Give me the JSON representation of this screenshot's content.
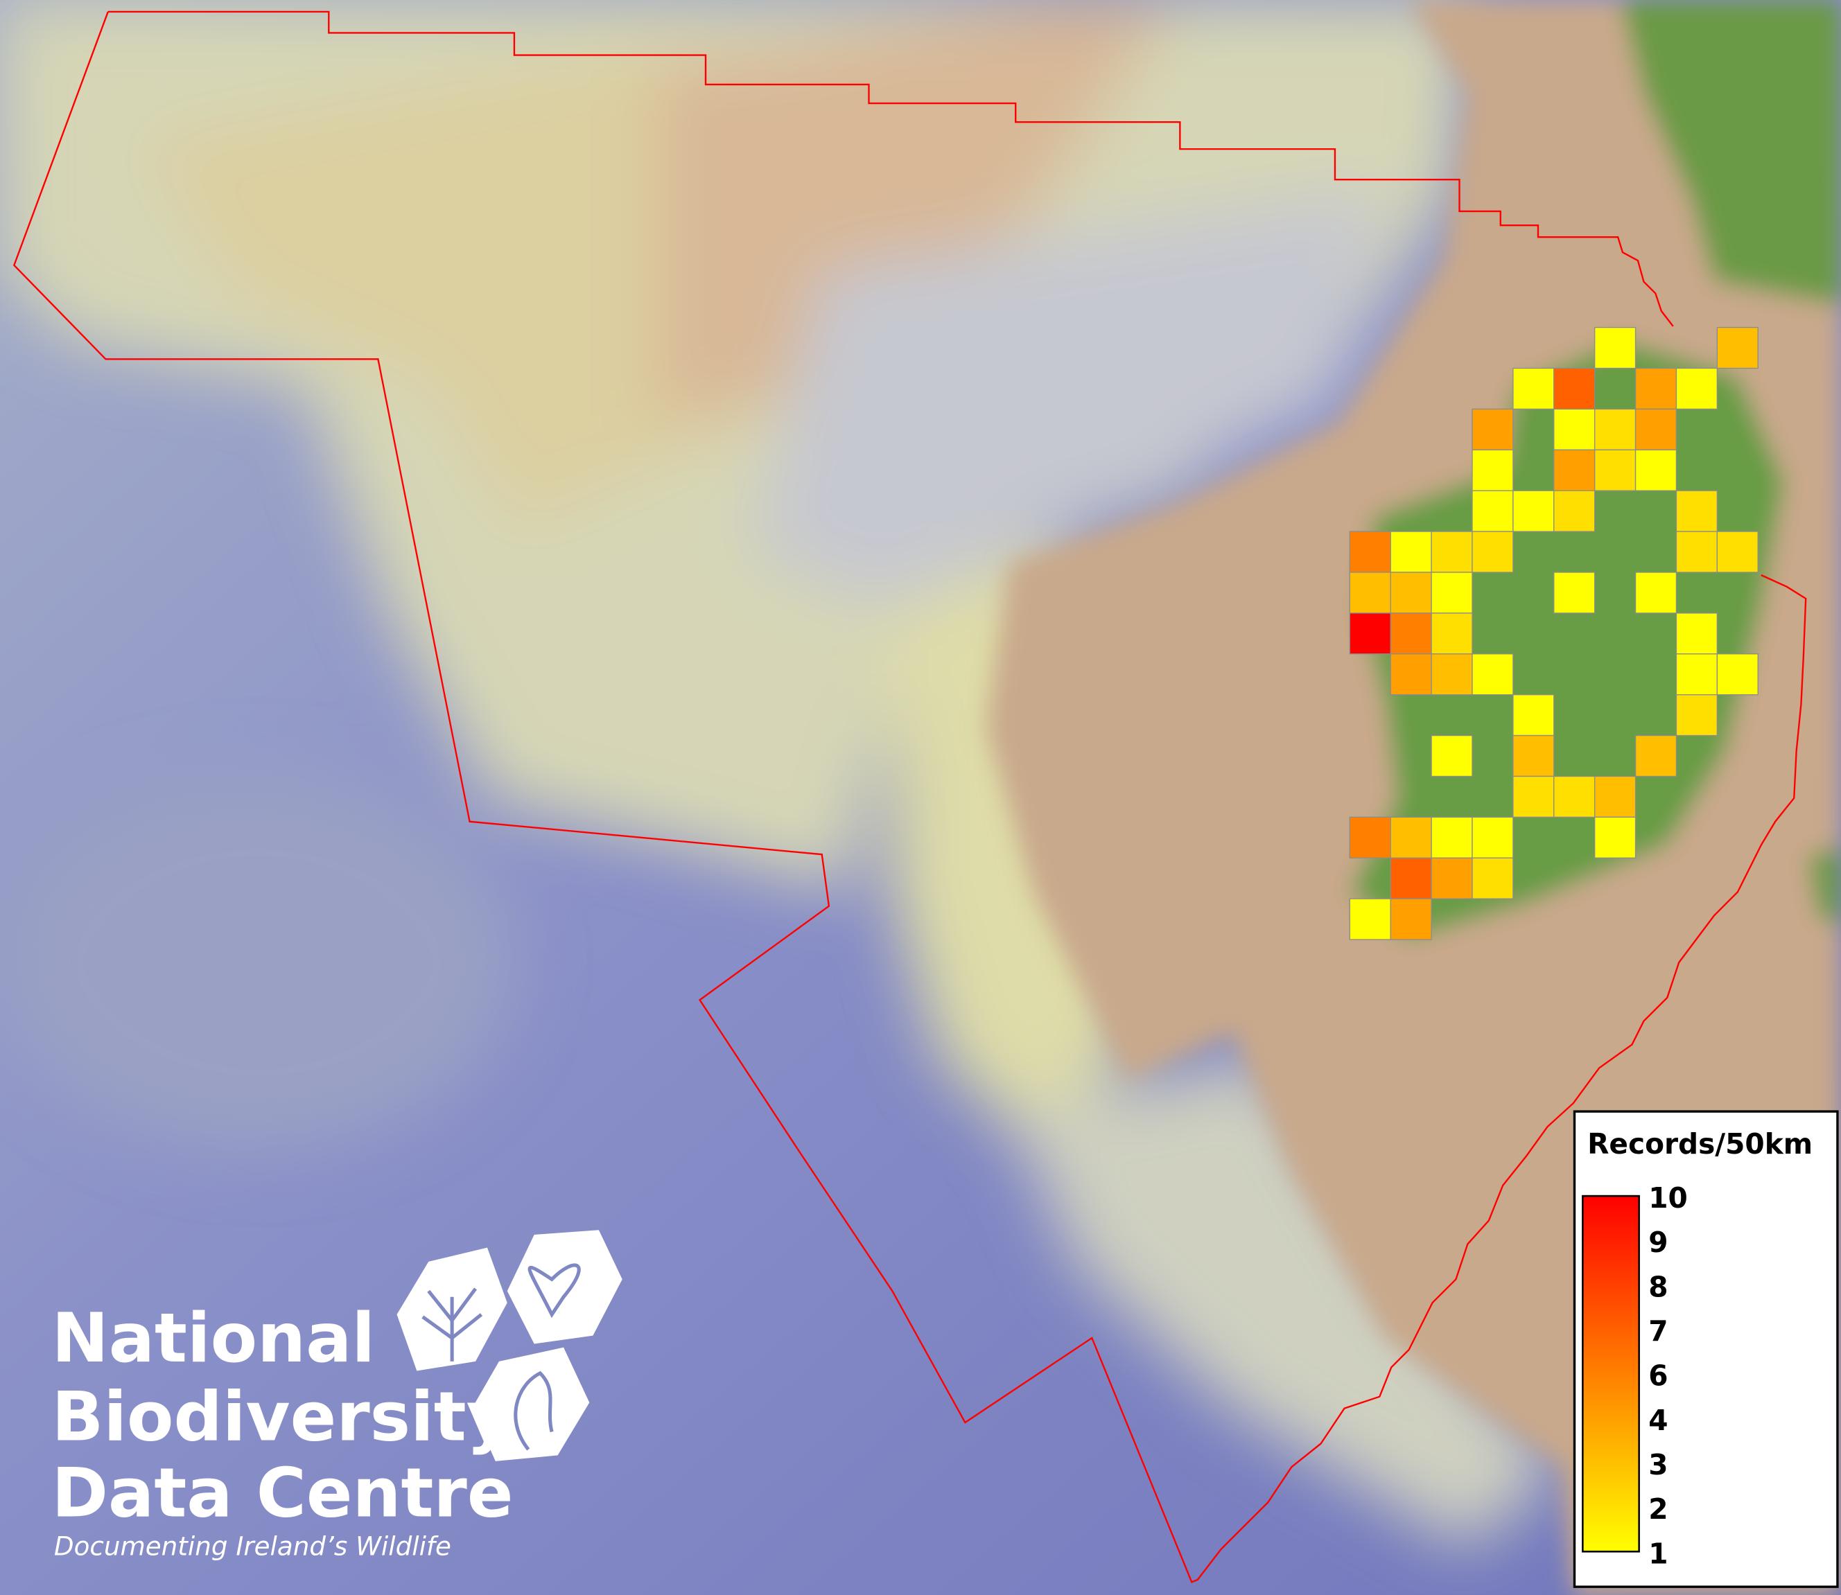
{
  "logo": {
    "line1": "National",
    "line2": "Biodiversity",
    "line3": "Data Centre",
    "tagline": "Documenting Ireland’s Wildlife"
  },
  "legend": {
    "title": "Records/50km",
    "labels": [
      "10",
      "9",
      "8",
      "7",
      "6",
      "4",
      "3",
      "2",
      "1"
    ],
    "color_low": "#ffff00",
    "color_high": "#ff0000"
  },
  "colors": {
    "deep_sea": "#7f86c6",
    "shelf": "#d9d9a8",
    "land": "#c9a98b",
    "ireland": "#679c45",
    "boundary": "#ff0000",
    "cell_border": "#8c8c8c"
  },
  "grid": {
    "resolution": "50km",
    "cells": [
      {
        "row": 0,
        "col": 6,
        "value": 1
      },
      {
        "row": 0,
        "col": 9,
        "value": 3
      },
      {
        "row": 1,
        "col": 4,
        "value": 1
      },
      {
        "row": 1,
        "col": 5,
        "value": 7
      },
      {
        "row": 1,
        "col": 7,
        "value": 4
      },
      {
        "row": 1,
        "col": 8,
        "value": 1
      },
      {
        "row": 2,
        "col": 3,
        "value": 4
      },
      {
        "row": 2,
        "col": 5,
        "value": 1
      },
      {
        "row": 2,
        "col": 6,
        "value": 2
      },
      {
        "row": 2,
        "col": 7,
        "value": 4
      },
      {
        "row": 3,
        "col": 3,
        "value": 1
      },
      {
        "row": 3,
        "col": 5,
        "value": 4
      },
      {
        "row": 3,
        "col": 6,
        "value": 2
      },
      {
        "row": 3,
        "col": 7,
        "value": 1
      },
      {
        "row": 4,
        "col": 3,
        "value": 1
      },
      {
        "row": 4,
        "col": 4,
        "value": 1
      },
      {
        "row": 4,
        "col": 5,
        "value": 2
      },
      {
        "row": 4,
        "col": 8,
        "value": 2
      },
      {
        "row": 5,
        "col": 0,
        "value": 6
      },
      {
        "row": 5,
        "col": 1,
        "value": 1
      },
      {
        "row": 5,
        "col": 2,
        "value": 2
      },
      {
        "row": 5,
        "col": 3,
        "value": 2
      },
      {
        "row": 5,
        "col": 8,
        "value": 2
      },
      {
        "row": 5,
        "col": 9,
        "value": 2
      },
      {
        "row": 6,
        "col": 0,
        "value": 3
      },
      {
        "row": 6,
        "col": 1,
        "value": 3
      },
      {
        "row": 6,
        "col": 2,
        "value": 1
      },
      {
        "row": 6,
        "col": 5,
        "value": 1
      },
      {
        "row": 6,
        "col": 7,
        "value": 1
      },
      {
        "row": 7,
        "col": 0,
        "value": 10
      },
      {
        "row": 7,
        "col": 1,
        "value": 6
      },
      {
        "row": 7,
        "col": 2,
        "value": 2
      },
      {
        "row": 7,
        "col": 8,
        "value": 1
      },
      {
        "row": 8,
        "col": 1,
        "value": 4
      },
      {
        "row": 8,
        "col": 2,
        "value": 3
      },
      {
        "row": 8,
        "col": 3,
        "value": 1
      },
      {
        "row": 8,
        "col": 8,
        "value": 1
      },
      {
        "row": 8,
        "col": 9,
        "value": 1
      },
      {
        "row": 9,
        "col": 4,
        "value": 1
      },
      {
        "row": 9,
        "col": 8,
        "value": 2
      },
      {
        "row": 10,
        "col": 2,
        "value": 1
      },
      {
        "row": 10,
        "col": 4,
        "value": 3
      },
      {
        "row": 10,
        "col": 7,
        "value": 3
      },
      {
        "row": 11,
        "col": 4,
        "value": 2
      },
      {
        "row": 11,
        "col": 5,
        "value": 2
      },
      {
        "row": 11,
        "col": 6,
        "value": 3
      },
      {
        "row": 12,
        "col": 0,
        "value": 6
      },
      {
        "row": 12,
        "col": 1,
        "value": 3
      },
      {
        "row": 12,
        "col": 2,
        "value": 1
      },
      {
        "row": 12,
        "col": 3,
        "value": 1
      },
      {
        "row": 12,
        "col": 6,
        "value": 1
      },
      {
        "row": 13,
        "col": 1,
        "value": 7
      },
      {
        "row": 13,
        "col": 2,
        "value": 4
      },
      {
        "row": 13,
        "col": 3,
        "value": 2
      },
      {
        "row": 14,
        "col": 0,
        "value": 1
      },
      {
        "row": 14,
        "col": 1,
        "value": 4
      }
    ]
  }
}
